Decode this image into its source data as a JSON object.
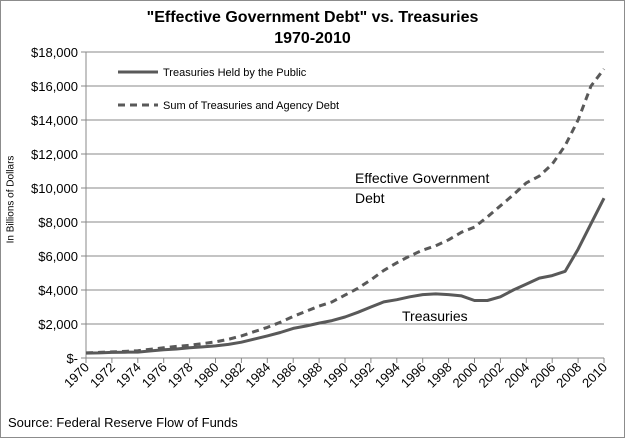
{
  "chart_data": {
    "type": "line",
    "title": "\"Effective Government Debt\" vs. Treasuries",
    "subtitle": "1970-2010",
    "xlabel": "",
    "ylabel": "In Billions of Dollars",
    "source": "Source: Federal Reserve Flow of Funds",
    "ylim": [
      0,
      18000
    ],
    "xlim": [
      1970,
      2010
    ],
    "y_ticks": [
      "$-",
      "$2,000",
      "$4,000",
      "$6,000",
      "$8,000",
      "$10,000",
      "$12,000",
      "$14,000",
      "$16,000",
      "$18,000"
    ],
    "x_ticks": [
      "1970",
      "1972",
      "1974",
      "1976",
      "1978",
      "1980",
      "1982",
      "1984",
      "1986",
      "1988",
      "1990",
      "1992",
      "1994",
      "1996",
      "1998",
      "2000",
      "2002",
      "2004",
      "2006",
      "2008",
      "2010"
    ],
    "grid": true,
    "legend_position": "top-left",
    "x": [
      1970,
      1971,
      1972,
      1973,
      1974,
      1975,
      1976,
      1977,
      1978,
      1979,
      1980,
      1981,
      1982,
      1983,
      1984,
      1985,
      1986,
      1987,
      1988,
      1989,
      1990,
      1991,
      1992,
      1993,
      1994,
      1995,
      1996,
      1997,
      1998,
      1999,
      2000,
      2001,
      2002,
      2003,
      2004,
      2005,
      2006,
      2007,
      2008,
      2009,
      2010
    ],
    "series": [
      {
        "name": "Treasuries Held by the Public",
        "style": "solid",
        "color": "#595959",
        "values": [
          290,
          300,
          330,
          340,
          350,
          420,
          490,
          530,
          600,
          650,
          710,
          800,
          930,
          1110,
          1300,
          1500,
          1740,
          1880,
          2050,
          2200,
          2410,
          2690,
          3000,
          3300,
          3430,
          3600,
          3730,
          3770,
          3730,
          3650,
          3380,
          3380,
          3600,
          4000,
          4350,
          4700,
          4850,
          5100,
          6400,
          7900,
          9400
        ]
      },
      {
        "name": "Sum of Treasuries and Agency Debt",
        "style": "dashed",
        "color": "#595959",
        "values": [
          300,
          330,
          360,
          390,
          430,
          520,
          600,
          680,
          750,
          850,
          950,
          1100,
          1300,
          1550,
          1800,
          2100,
          2450,
          2750,
          3050,
          3300,
          3700,
          4100,
          4600,
          5150,
          5600,
          6000,
          6350,
          6600,
          6950,
          7400,
          7700,
          8300,
          8950,
          9600,
          10300,
          10700,
          11400,
          12500,
          14000,
          16000,
          17000
        ]
      }
    ],
    "annotations": {
      "effective_line1": "Effective Government",
      "effective_line2": "Debt",
      "treasuries": "Treasuries"
    }
  }
}
